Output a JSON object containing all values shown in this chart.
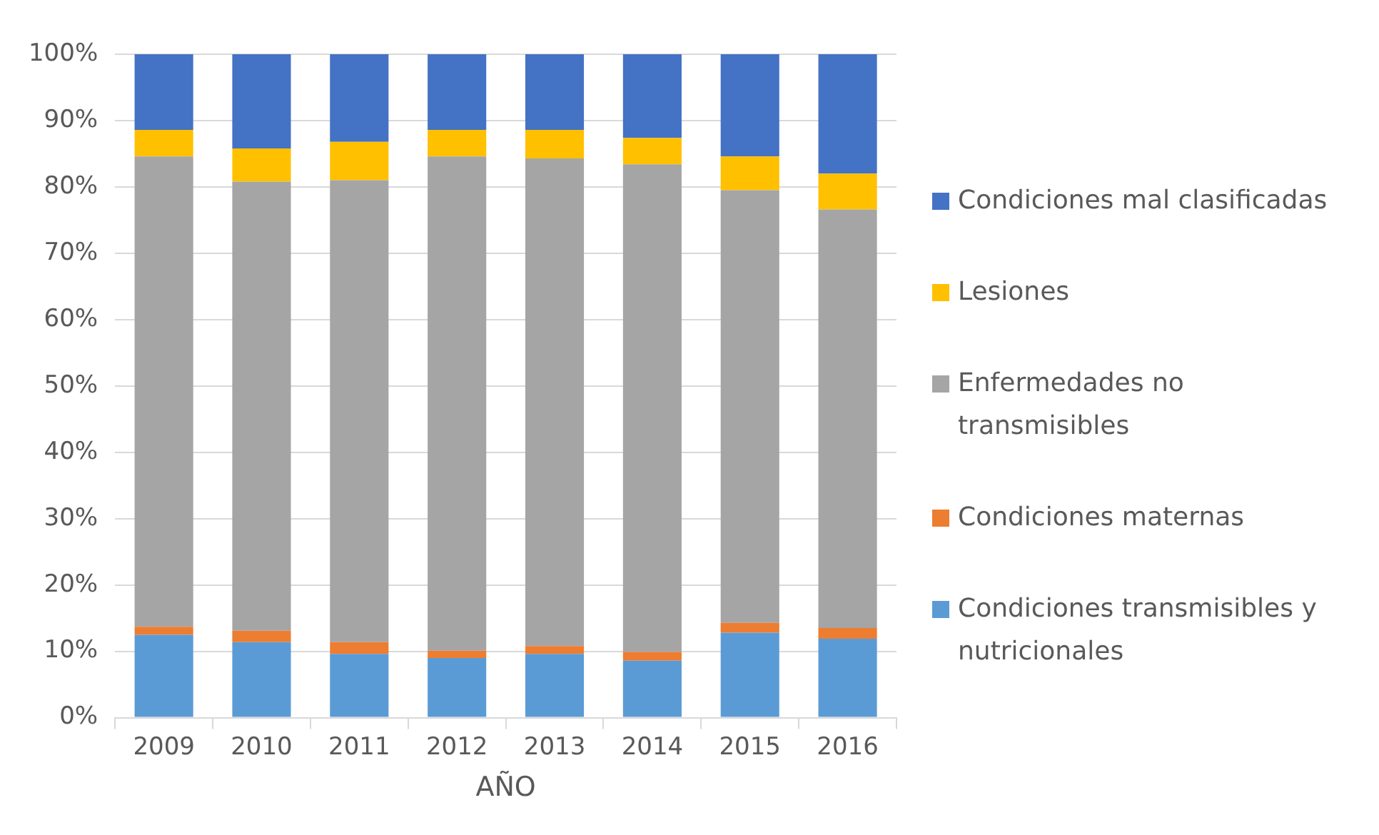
{
  "chart_data": {
    "type": "bar",
    "stacked": true,
    "xlabel": "AÑO",
    "categories": [
      "2009",
      "2010",
      "2011",
      "2012",
      "2013",
      "2014",
      "2015",
      "2016"
    ],
    "series": [
      {
        "name": "Condiciones transmisibles y nutricionales",
        "color": "#5b9bd5",
        "values": [
          12.5,
          11.4,
          9.6,
          9.0,
          9.6,
          8.6,
          12.8,
          11.9
        ]
      },
      {
        "name": "Condiciones maternas",
        "color": "#ed7d31",
        "values": [
          1.2,
          1.7,
          1.8,
          1.1,
          1.2,
          1.3,
          1.5,
          1.6
        ]
      },
      {
        "name": "Enfermedades no transmisibles",
        "color": "#a5a5a5",
        "values": [
          70.9,
          67.7,
          69.6,
          74.5,
          73.5,
          73.5,
          65.2,
          63.1
        ]
      },
      {
        "name": "Lesiones",
        "color": "#ffc000",
        "values": [
          4.0,
          5.0,
          5.8,
          4.0,
          4.3,
          4.0,
          5.1,
          5.4
        ]
      },
      {
        "name": "Condiciones mal clasificadas",
        "color": "#4472c4",
        "values": [
          11.4,
          14.2,
          13.2,
          11.4,
          11.4,
          12.6,
          15.4,
          18.0
        ]
      }
    ],
    "ylim": [
      0,
      100
    ],
    "yticks": [
      {
        "value": 0,
        "label": "0%"
      },
      {
        "value": 10,
        "label": "10%"
      },
      {
        "value": 20,
        "label": "20%"
      },
      {
        "value": 30,
        "label": "30%"
      },
      {
        "value": 40,
        "label": "40%"
      },
      {
        "value": 50,
        "label": "50%"
      },
      {
        "value": 60,
        "label": "60%"
      },
      {
        "value": 70,
        "label": "70%"
      },
      {
        "value": 80,
        "label": "80%"
      },
      {
        "value": 90,
        "label": "90%"
      },
      {
        "value": 100,
        "label": "100%"
      }
    ],
    "grid": "y",
    "legend": "right"
  }
}
